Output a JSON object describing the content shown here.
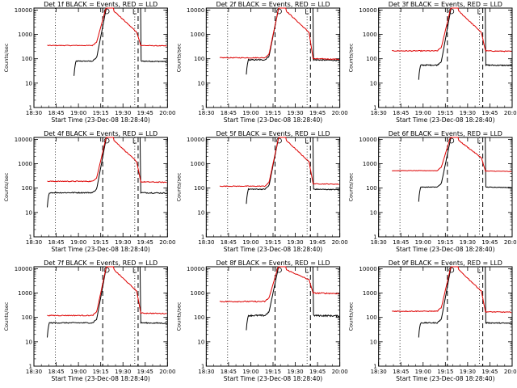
{
  "chart_data": [
    {
      "type": "line",
      "title": "Det 1f BLACK = Events, RED = LLD",
      "events_level": 80,
      "lld_level": 350,
      "lld_tail": 350,
      "events_start": 0.3,
      "noise": 0.08
    },
    {
      "type": "line",
      "title": "Det 2f BLACK = Events, RED = LLD",
      "events_level": 90,
      "lld_level": 110,
      "lld_tail": 100,
      "events_start": 0.3,
      "noise": 0.1
    },
    {
      "type": "line",
      "title": "Det 3f BLACK = Events, RED = LLD",
      "events_level": 55,
      "lld_level": 210,
      "lld_tail": 210,
      "events_start": 0.3,
      "noise": 0.1
    },
    {
      "type": "line",
      "title": "Det 4f BLACK = Events, RED = LLD",
      "events_level": 65,
      "lld_level": 190,
      "lld_tail": 180,
      "events_start": 0.1,
      "noise": 0.1
    },
    {
      "type": "line",
      "title": "Det 5f BLACK = Events, RED = LLD",
      "events_level": 90,
      "lld_level": 120,
      "lld_tail": 150,
      "events_start": 0.3,
      "noise": 0.08
    },
    {
      "type": "line",
      "title": "Det 6f BLACK = Events, RED = LLD",
      "events_level": 110,
      "lld_level": 520,
      "lld_tail": 500,
      "events_start": 0.3,
      "noise": 0.05
    },
    {
      "type": "line",
      "title": "Det 7f BLACK = Events, RED = LLD",
      "events_level": 60,
      "lld_level": 120,
      "lld_tail": 150,
      "events_start": 0.1,
      "noise": 0.1
    },
    {
      "type": "line",
      "title": "Det 8f BLACK = Events, RED = LLD",
      "events_level": 120,
      "lld_level": 450,
      "lld_tail": 1000,
      "events_start": 0.3,
      "noise": 0.14
    },
    {
      "type": "line",
      "title": "Det 9f BLACK = Events, RED = LLD",
      "events_level": 60,
      "lld_level": 180,
      "lld_tail": 170,
      "events_start": 0.3,
      "noise": 0.09
    }
  ],
  "axes": {
    "ylabel": "Counts/sec",
    "xlabel": "Start Time (23-Dec-08 18:28:40)",
    "x_ticks": [
      "18:30",
      "18:45",
      "19:00",
      "19:15",
      "19:30",
      "19:45",
      "20:00"
    ],
    "y_ticks": [
      "1",
      "10",
      "100",
      "1000",
      "10000"
    ],
    "ylim": [
      1,
      12000
    ],
    "yscale": "log"
  },
  "series_colors": {
    "events": "#000000",
    "lld": "#dd0000"
  }
}
